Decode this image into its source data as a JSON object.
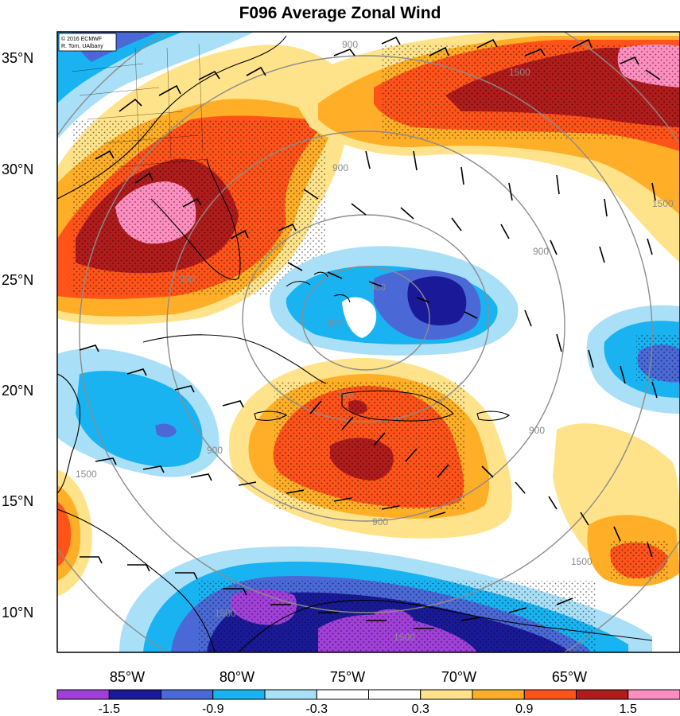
{
  "title": "F096 Average Zonal Wind",
  "credit": {
    "line1": "© 2016 ECMWF",
    "line2": "R. Torn, UAlbany"
  },
  "lat_labels": [
    "35°N",
    "30°N",
    "25°N",
    "20°N",
    "15°N",
    "10°N"
  ],
  "lon_labels": [
    "85°W",
    "80°W",
    "75°W",
    "70°W",
    "65°W"
  ],
  "colorbar": {
    "colors": [
      "#a13fd9",
      "#1a1a99",
      "#4a69d6",
      "#19b3f2",
      "#a9e0f7",
      "#ffffff",
      "#ffffff",
      "#ffe38a",
      "#ffae28",
      "#ff531a",
      "#b01c1c",
      "#ff8ec0"
    ],
    "labels": [
      "-1.5",
      "-0.9",
      "-0.3",
      "0.3",
      "0.9",
      "1.5"
    ]
  },
  "contour_labels": [
    "900",
    "900",
    "900",
    "900",
    "900",
    "900",
    "900",
    "1500",
    "1500",
    "1500",
    "1500",
    "1500",
    "1500",
    "300",
    "300",
    "300"
  ],
  "overlays": {
    "contour_color": "#8c8c8c",
    "barb_color": "#000000",
    "coast_color": "#000000",
    "stipple": true
  }
}
